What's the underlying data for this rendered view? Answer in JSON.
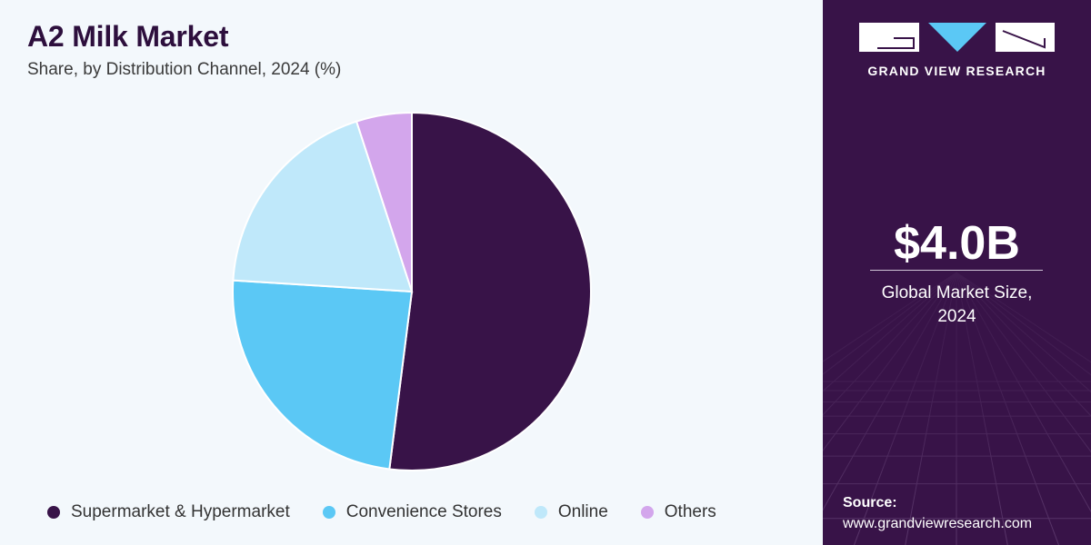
{
  "chart_data": {
    "type": "pie",
    "title": "A2 Milk Market",
    "subtitle": "Share, by Distribution Channel, 2024 (%)",
    "categories": [
      "Supermarket & Hypermarket",
      "Convenience Stores",
      "Online",
      "Others"
    ],
    "values": [
      52,
      24,
      19,
      5
    ],
    "colors": [
      "#381348",
      "#5bc8f5",
      "#bfe8fa",
      "#d3a6ec"
    ],
    "legend_position": "bottom"
  },
  "side_panel": {
    "brand_name": "GRAND VIEW RESEARCH",
    "market_value": "$4.0B",
    "market_label_line1": "Global Market Size,",
    "market_label_line2": "2024",
    "source_title": "Source:",
    "source_url": "www.grandviewresearch.com",
    "background_color": "#381348",
    "logo_accent_color": "#5bc8f5"
  }
}
